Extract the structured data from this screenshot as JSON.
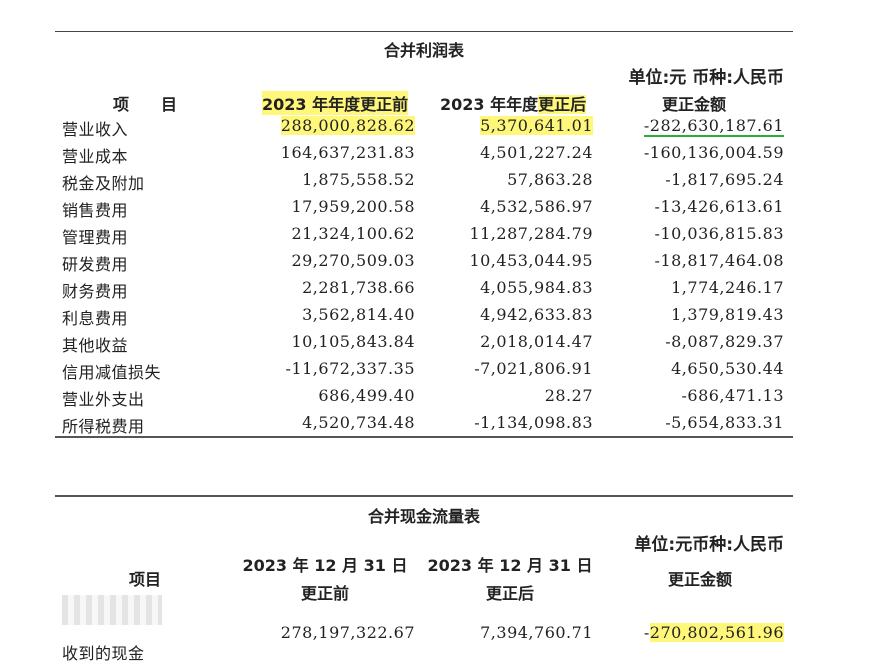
{
  "income_statement": {
    "title": "合并利润表",
    "unit_line": "单位:元  币种:人民币",
    "headers": {
      "item": "项　　目",
      "before": "2023 年年度更正前",
      "after_prefix": "2023 年年度",
      "after_suffix": "更正后",
      "diff": "更正金额"
    },
    "rows": [
      {
        "item": "营业收入",
        "before": "288,000,828.62",
        "after": "5,370,641.01",
        "diff": "-282,630,187.61"
      },
      {
        "item": "营业成本",
        "before": "164,637,231.83",
        "after": "4,501,227.24",
        "diff": "-160,136,004.59"
      },
      {
        "item": "税金及附加",
        "before": "1,875,558.52",
        "after": "57,863.28",
        "diff": "-1,817,695.24"
      },
      {
        "item": "销售费用",
        "before": "17,959,200.58",
        "after": "4,532,586.97",
        "diff": "-13,426,613.61"
      },
      {
        "item": "管理费用",
        "before": "21,324,100.62",
        "after": "11,287,284.79",
        "diff": "-10,036,815.83"
      },
      {
        "item": "研发费用",
        "before": "29,270,509.03",
        "after": "10,453,044.95",
        "diff": "-18,817,464.08"
      },
      {
        "item": "财务费用",
        "before": "2,281,738.66",
        "after": "4,055,984.83",
        "diff": "1,774,246.17"
      },
      {
        "item": "利息费用",
        "before": "3,562,814.40",
        "after": "4,942,633.83",
        "diff": "1,379,819.43"
      },
      {
        "item": "其他收益",
        "before": "10,105,843.84",
        "after": "2,018,014.47",
        "diff": "-8,087,829.37"
      },
      {
        "item": "信用减值损失",
        "before": "-11,672,337.35",
        "after": "-7,021,806.91",
        "diff": "4,650,530.44"
      },
      {
        "item": "营业外支出",
        "before": "686,499.40",
        "after": "28.27",
        "diff": "-686,471.13"
      },
      {
        "item": "所得税费用",
        "before": "4,520,734.48",
        "after": "-1,134,098.83",
        "diff": "-5,654,833.31"
      }
    ]
  },
  "cash_flow": {
    "title": "合并现金流量表",
    "unit_line": "单位:元币种:人民币",
    "headers": {
      "item": "项目",
      "before_line1": "2023 年 12 月 31 日",
      "before_line2": "更正前",
      "after_line1": "2023 年 12 月 31 日",
      "after_line2": "更正后",
      "diff": "更正金额"
    },
    "row": {
      "item": "收到的现金",
      "before": "278,197,322.67",
      "after": "7,394,760.71",
      "diff_sign": "-",
      "diff_value": "270,802,561.96"
    }
  },
  "colors": {
    "highlight": "#fff77a",
    "underline": "#2faa3c"
  }
}
